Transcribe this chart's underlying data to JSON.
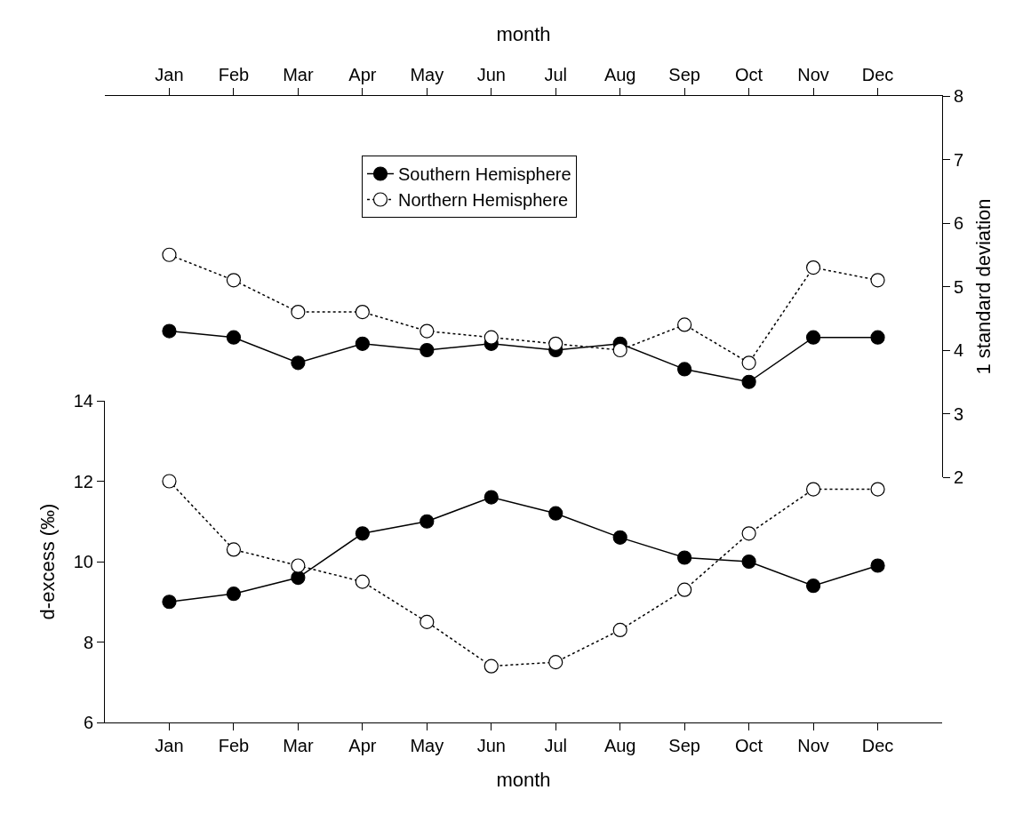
{
  "chart_data": [
    {
      "type": "line",
      "xlabel": "month",
      "ylabel": "1 standard deviation",
      "categories": [
        "Jan",
        "Feb",
        "Mar",
        "Apr",
        "May",
        "Jun",
        "Jul",
        "Aug",
        "Sep",
        "Oct",
        "Nov",
        "Dec"
      ],
      "ylim": [
        2,
        8
      ],
      "yticks": [
        2,
        3,
        4,
        5,
        6,
        7,
        8
      ],
      "grid": false,
      "legend": "top",
      "marker": "circle",
      "series": [
        {
          "name": "Southern Hemisphere",
          "color": "#000000",
          "line_style": "solid",
          "values": [
            4.3,
            4.2,
            3.8,
            4.1,
            4.0,
            4.1,
            4.0,
            4.1,
            3.7,
            3.5,
            4.2,
            4.2
          ]
        },
        {
          "name": "Northern Hemisphere",
          "color": "#000000",
          "line_style": "dotted",
          "values": [
            5.5,
            5.1,
            4.6,
            4.6,
            4.3,
            4.2,
            4.1,
            4.0,
            4.4,
            3.8,
            5.3,
            5.1
          ]
        }
      ]
    },
    {
      "type": "line",
      "xlabel": "month",
      "ylabel": "d-excess (‰)",
      "categories": [
        "Jan",
        "Feb",
        "Mar",
        "Apr",
        "May",
        "Jun",
        "Jul",
        "Aug",
        "Sep",
        "Oct",
        "Nov",
        "Dec"
      ],
      "ylim": [
        6,
        14
      ],
      "yticks": [
        6,
        8,
        10,
        12,
        14
      ],
      "grid": false,
      "marker": "circle",
      "series": [
        {
          "color": "#000000",
          "line_style": "solid",
          "values": [
            9.0,
            9.2,
            9.6,
            10.7,
            11.0,
            11.6,
            11.2,
            10.6,
            10.1,
            10.0,
            9.4,
            9.9
          ]
        },
        {
          "color": "#000000",
          "line_style": "dotted",
          "values": [
            12.0,
            10.3,
            9.9,
            9.5,
            8.5,
            7.4,
            7.5,
            8.3,
            9.3,
            10.7,
            11.8,
            11.8
          ]
        }
      ]
    }
  ]
}
